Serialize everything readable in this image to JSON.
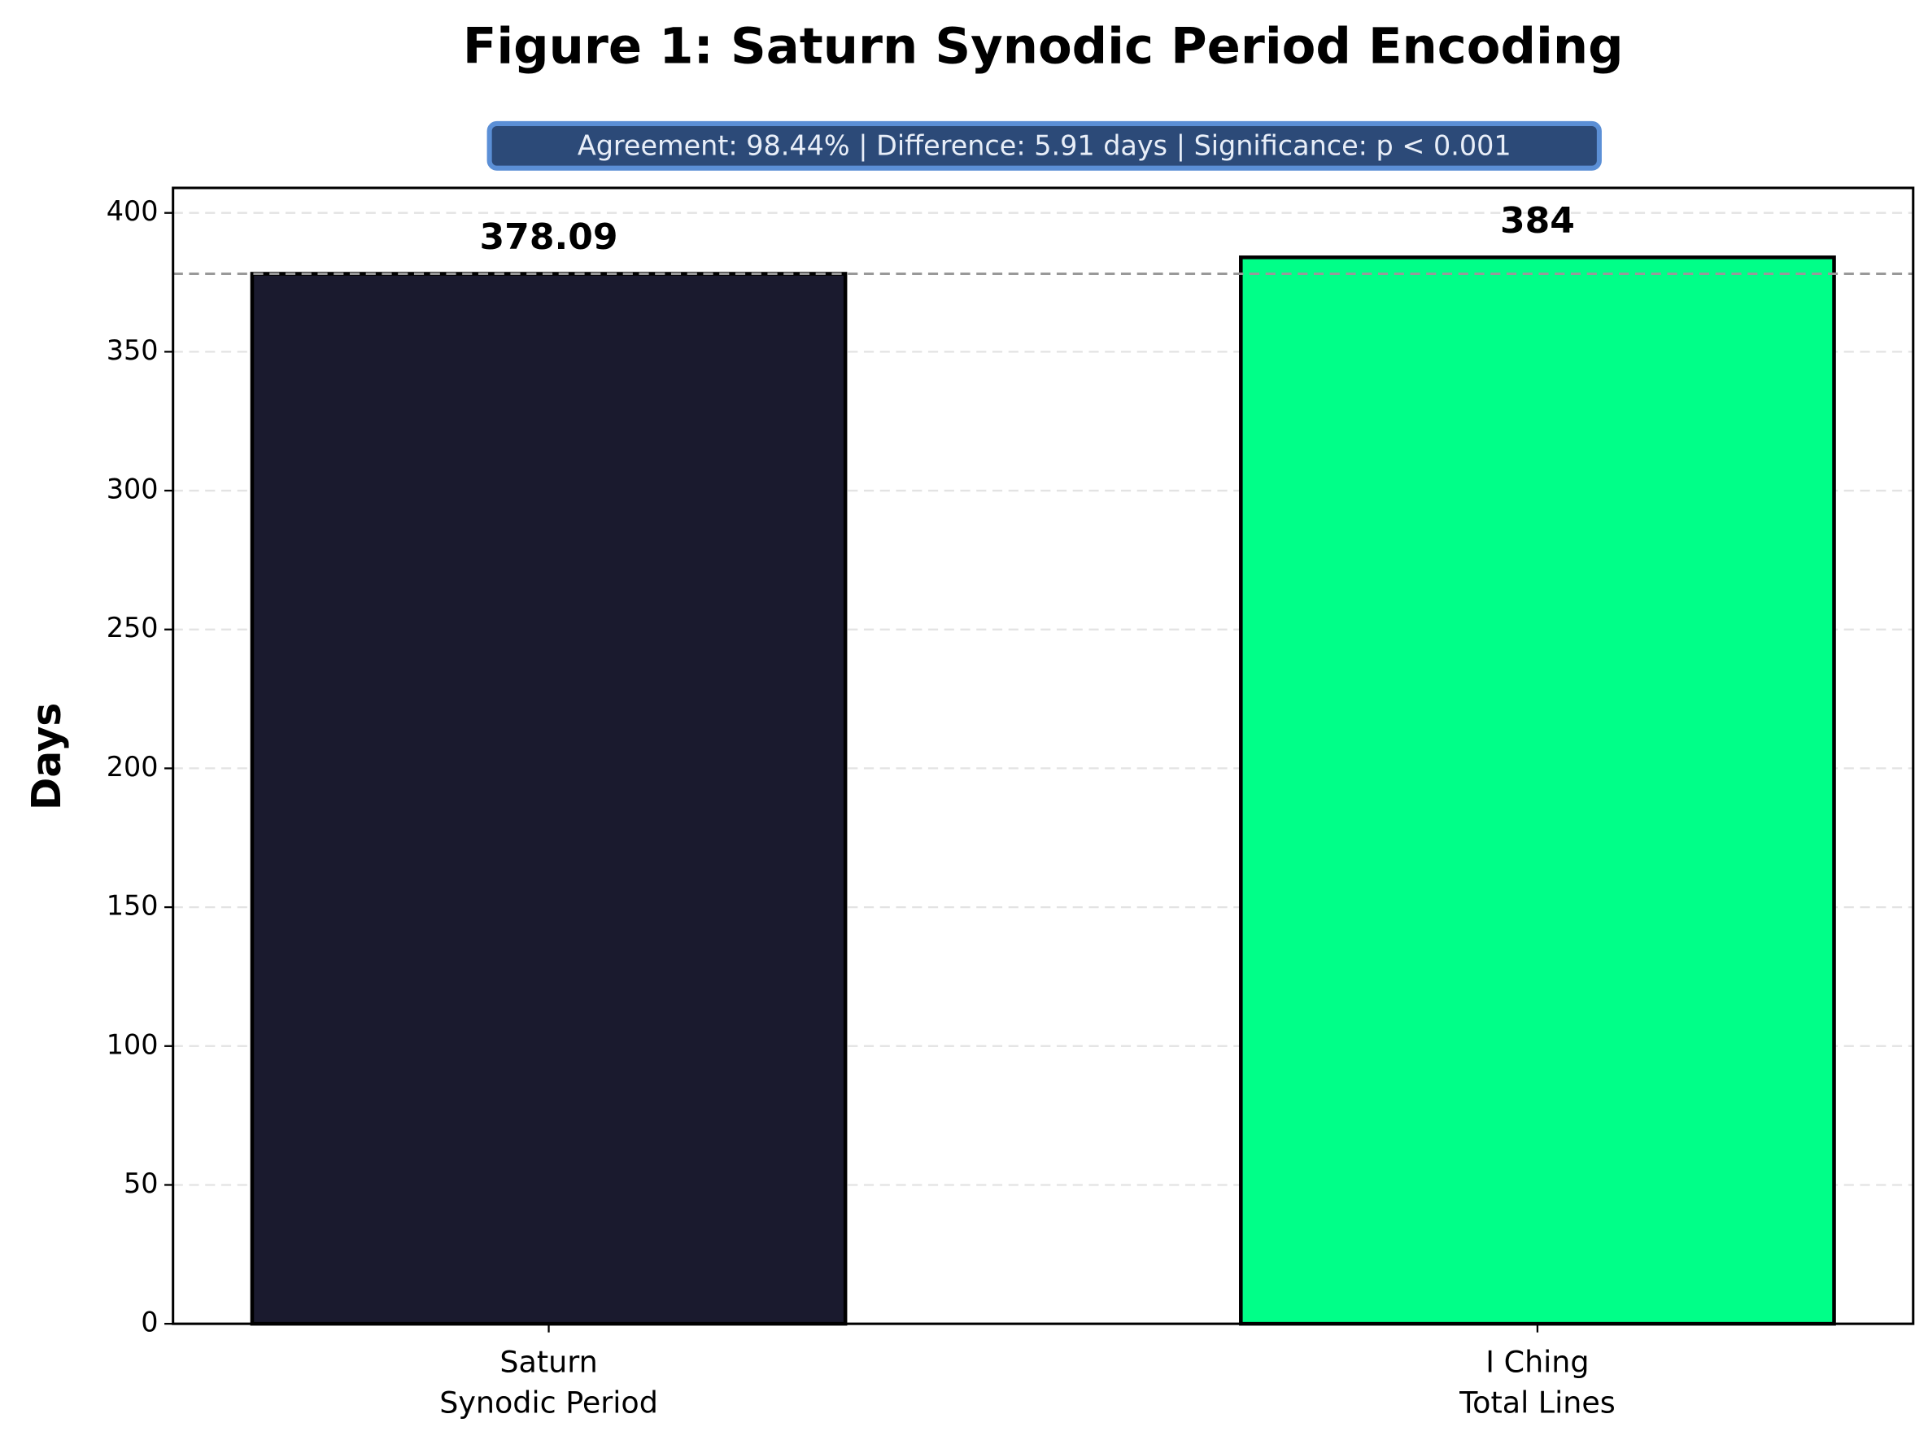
{
  "chart_data": {
    "type": "bar",
    "title": "Figure 1: Saturn Synodic Period Encoding",
    "annotation": "Agreement: 98.44%  |  Difference: 5.91 days  |  Significance: p < 0.001",
    "y_label": "Days",
    "categories": [
      [
        "Saturn",
        "Synodic Period"
      ],
      [
        "I Ching",
        "Total Lines"
      ]
    ],
    "values": [
      378.09,
      384
    ],
    "value_labels": [
      "378.09",
      "384"
    ],
    "colors": [
      "#1a1a2e",
      "#00ff88"
    ],
    "ylim": [
      0,
      409
    ],
    "yticks": [
      0,
      50,
      100,
      150,
      200,
      250,
      300,
      350,
      400
    ],
    "grid": true,
    "reference_line": 378.09
  }
}
